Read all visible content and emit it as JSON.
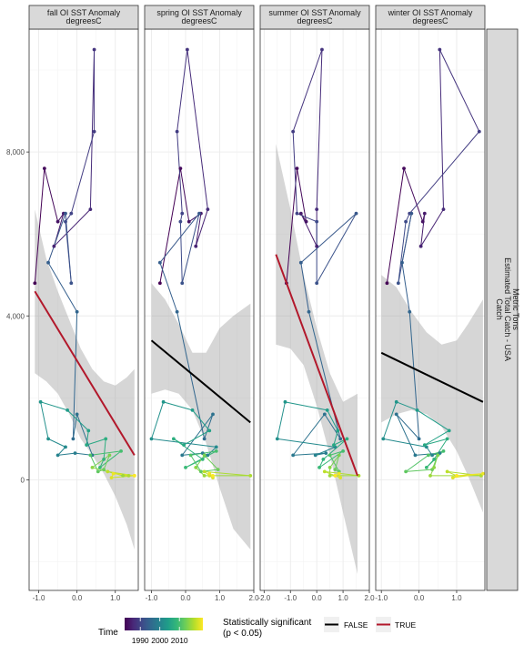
{
  "chart_data": {
    "type": "line",
    "facet_strip_labels": [
      [
        "fall OI SST Anomaly",
        "degreesC"
      ],
      [
        "spring OI SST Anomaly",
        "degreesC"
      ],
      [
        "summer OI SST Anomaly",
        "degreesC"
      ],
      [
        "winter OI SST Anomaly",
        "degreesC"
      ]
    ],
    "right_strip_label": [
      "Catch",
      "Estimated Total Catch - USA",
      "Metric Tons"
    ],
    "ylim": [
      -2700,
      11000
    ],
    "y_ticks": [
      0,
      4000,
      8000
    ],
    "y_tick_labels": [
      "0",
      "4,000",
      "8,000"
    ],
    "grid": true,
    "legend_placement": "bottom",
    "color_legend": {
      "title": "Time",
      "breaks": [
        1990,
        2000,
        2010
      ],
      "range": [
        1982,
        2022
      ],
      "colors": [
        "#440154",
        "#482878",
        "#3e4a89",
        "#31688e",
        "#26828e",
        "#1f9e89",
        "#35b779",
        "#6ece58",
        "#b5de2b",
        "#fde725"
      ]
    },
    "sig_legend": {
      "title_line1": "Statistically significant",
      "title_line2": "(p < 0.05)",
      "items": [
        {
          "label": "FALSE",
          "color": "#000000"
        },
        {
          "label": "TRUE",
          "color": "#b2182b"
        }
      ]
    },
    "catch": [
      4800,
      7600,
      6300,
      6500,
      5700,
      6600,
      10500,
      8500,
      6500,
      6300,
      4800,
      6500,
      5300,
      4100,
      1000,
      1600,
      600,
      650,
      600,
      800,
      1000,
      1900,
      1700,
      1200,
      850,
      1000,
      500,
      300,
      700,
      600,
      200,
      250,
      600,
      300,
      100,
      100,
      200,
      100,
      50,
      150,
      100
    ],
    "panels": [
      {
        "x_ticks": [
          -1.0,
          0.0,
          1.0
        ],
        "x_tick_labels": [
          "-1.0",
          "0.0",
          "1.0"
        ],
        "xlim": [
          -1.25,
          1.6
        ],
        "sst": [
          -1.1,
          -0.85,
          -0.5,
          -0.35,
          -0.6,
          0.35,
          0.45,
          0.45,
          -0.15,
          -0.3,
          -0.15,
          -0.3,
          -0.75,
          0.0,
          -0.1,
          0.0,
          0.4,
          -0.05,
          -0.5,
          -0.3,
          -0.75,
          -0.95,
          -0.25,
          0.3,
          0.25,
          0.75,
          0.7,
          0.6,
          1.15,
          0.35,
          0.55,
          0.7,
          0.85,
          0.4,
          1.2,
          1.35,
          0.8,
          1.5,
          0.9,
          0.95,
          1.5
        ],
        "trend": {
          "x": [
            -1.1,
            1.5
          ],
          "y": [
            4600,
            600
          ],
          "significant": true
        },
        "ribbon": {
          "x": [
            -1.1,
            -0.8,
            -0.5,
            -0.2,
            0.1,
            0.4,
            0.7,
            1.0,
            1.3,
            1.5
          ],
          "lower": [
            2600,
            2400,
            2100,
            1600,
            1000,
            600,
            150,
            -400,
            -1100,
            -1700
          ],
          "upper": [
            6600,
            5400,
            4600,
            3900,
            3200,
            2700,
            2400,
            2300,
            2500,
            2700
          ]
        }
      },
      {
        "x_ticks": [
          -1.0,
          0.0,
          1.0,
          2.0
        ],
        "x_tick_labels": [
          "-1.0",
          "0.0",
          "1.0",
          "2.0"
        ],
        "xlim": [
          -1.2,
          2.0
        ],
        "sst": [
          -0.75,
          -0.15,
          0.1,
          0.45,
          0.3,
          0.65,
          0.05,
          -0.25,
          -0.1,
          -0.15,
          -0.1,
          0.4,
          -0.75,
          -0.25,
          0.55,
          0.8,
          -0.1,
          0.5,
          0.65,
          0.9,
          -1.0,
          -0.65,
          0.2,
          0.7,
          -0.05,
          -0.35,
          0.5,
          0.0,
          0.9,
          0.15,
          0.45,
          0.95,
          0.55,
          0.3,
          0.55,
          1.9,
          0.55,
          0.7,
          0.8,
          0.7,
          0.8
        ],
        "trend": {
          "x": [
            -1.0,
            1.9
          ],
          "y": [
            3400,
            1400
          ],
          "significant": false
        },
        "ribbon": {
          "x": [
            -1.0,
            -0.6,
            -0.2,
            0.2,
            0.6,
            1.0,
            1.4,
            1.9
          ],
          "lower": [
            2100,
            2200,
            2100,
            1700,
            900,
            -200,
            -1200,
            -1700
          ],
          "upper": [
            4800,
            4400,
            3800,
            3100,
            3100,
            3700,
            4000,
            4300
          ]
        }
      },
      {
        "x_ticks": [
          -2.0,
          -1.0,
          0.0,
          1.0,
          2.0
        ],
        "x_tick_labels": [
          "-2.0",
          "-1.0",
          "0.0",
          "1.0",
          "2.0"
        ],
        "xlim": [
          -2.15,
          2.0
        ],
        "sst": [
          -1.15,
          -0.75,
          -0.4,
          -0.6,
          0.0,
          0.0,
          0.2,
          -0.9,
          -0.75,
          0.0,
          0.0,
          1.5,
          -0.6,
          -0.3,
          0.9,
          0.3,
          -0.9,
          0.35,
          -0.05,
          0.7,
          -1.5,
          -1.2,
          0.4,
          0.8,
          0.65,
          1.15,
          0.25,
          0.1,
          1.0,
          0.5,
          0.85,
          0.7,
          0.85,
          0.5,
          0.5,
          1.6,
          0.3,
          0.7,
          0.9,
          0.85,
          0.7
        ],
        "trend": {
          "x": [
            -1.55,
            1.55
          ],
          "y": [
            5500,
            100
          ],
          "significant": true
        },
        "ribbon": {
          "x": [
            -1.55,
            -1.0,
            -0.5,
            0.0,
            0.5,
            1.0,
            1.55
          ],
          "lower": [
            3300,
            3200,
            2800,
            1800,
            600,
            -800,
            -2300
          ],
          "upper": [
            8200,
            6600,
            5000,
            3700,
            2600,
            1900,
            2100
          ]
        }
      },
      {
        "x_ticks": [
          -1.0,
          0.0,
          1.0
        ],
        "x_tick_labels": [
          "-1.0",
          "0.0",
          "1.0"
        ],
        "xlim": [
          -1.15,
          1.75
        ],
        "sst": [
          -0.85,
          -0.4,
          0.1,
          0.15,
          0.05,
          0.65,
          0.55,
          1.6,
          -0.25,
          -0.35,
          -0.55,
          -0.2,
          -0.45,
          -0.25,
          0.0,
          -0.6,
          -0.1,
          0.55,
          0.35,
          0.2,
          -0.95,
          -0.6,
          -0.05,
          0.8,
          0.15,
          0.75,
          0.4,
          0.2,
          0.65,
          0.25,
          -0.35,
          0.35,
          0.5,
          0.4,
          0.3,
          1.65,
          0.75,
          1.0,
          0.9,
          1.7,
          1.0
        ],
        "trend": {
          "x": [
            -1.0,
            1.7
          ],
          "y": [
            3100,
            1900
          ],
          "significant": false
        },
        "ribbon": {
          "x": [
            -1.0,
            -0.6,
            -0.2,
            0.2,
            0.6,
            1.0,
            1.3,
            1.7
          ],
          "lower": [
            1400,
            1600,
            1700,
            1600,
            1300,
            700,
            100,
            -800
          ],
          "upper": [
            5000,
            4700,
            4100,
            3600,
            3300,
            3400,
            3800,
            4400
          ]
        }
      }
    ]
  }
}
